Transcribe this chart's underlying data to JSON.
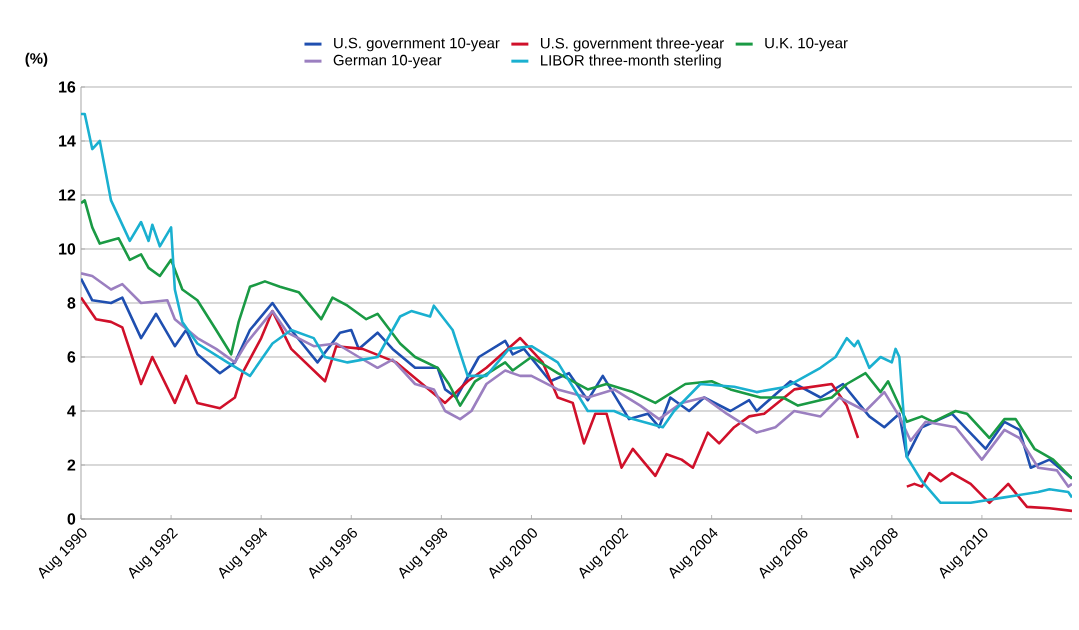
{
  "chart_data": {
    "type": "line",
    "ylabel": "(%)",
    "xlim": [
      "1990-08",
      "2012-08"
    ],
    "ylim": [
      0,
      16
    ],
    "yticks": [
      0,
      2,
      4,
      6,
      8,
      10,
      12,
      14,
      16
    ],
    "xticks": [
      {
        "value": "1990-08",
        "label": "Aug 1990"
      },
      {
        "value": "1992-08",
        "label": "Aug 1992"
      },
      {
        "value": "1994-08",
        "label": "Aug 1994"
      },
      {
        "value": "1996-08",
        "label": "Aug 1996"
      },
      {
        "value": "1998-08",
        "label": "Aug 1998"
      },
      {
        "value": "2000-08",
        "label": "Aug 2000"
      },
      {
        "value": "2002-08",
        "label": "Aug 2002"
      },
      {
        "value": "2004-08",
        "label": "Aug 2004"
      },
      {
        "value": "2006-08",
        "label": "Aug 2006"
      },
      {
        "value": "2008-08",
        "label": "Aug 2008"
      },
      {
        "value": "2010-08",
        "label": "Aug 2010"
      }
    ],
    "grid": "y",
    "legend": "top",
    "marker": "none",
    "line_style": "solid",
    "series": [
      {
        "name": "U.S. government  10-year",
        "color": "#1f4fb0",
        "x": [
          "1990-08",
          "1990-11",
          "1991-04",
          "1991-07",
          "1991-12",
          "1992-04",
          "1992-09",
          "1992-12",
          "1993-03",
          "1993-09",
          "1994-01",
          "1994-05",
          "1994-11",
          "1995-04",
          "1995-11",
          "1996-05",
          "1996-08",
          "1996-10",
          "1997-03",
          "1997-07",
          "1998-01",
          "1998-07",
          "1998-09",
          "1998-12",
          "1999-06",
          "2000-01",
          "2000-03",
          "2000-06",
          "2001-01",
          "2001-06",
          "2001-11",
          "2002-03",
          "2002-10",
          "2003-03",
          "2003-06",
          "2003-09",
          "2004-02",
          "2004-06",
          "2005-01",
          "2005-06",
          "2005-08",
          "2006-05",
          "2007-01",
          "2007-07",
          "2008-02",
          "2008-06",
          "2008-10",
          "2008-12",
          "2009-04",
          "2009-12",
          "2010-09",
          "2011-02",
          "2011-06",
          "2011-09",
          "2012-02",
          "2012-08"
        ],
        "values": [
          8.9,
          8.1,
          8.0,
          8.2,
          6.7,
          7.6,
          6.4,
          7.0,
          6.1,
          5.4,
          5.8,
          7.0,
          8.0,
          7.0,
          5.8,
          6.9,
          7.0,
          6.3,
          6.9,
          6.3,
          5.6,
          5.6,
          4.8,
          4.5,
          6.0,
          6.6,
          6.1,
          6.3,
          5.1,
          5.4,
          4.4,
          5.3,
          3.7,
          3.9,
          3.4,
          4.5,
          4.0,
          4.5,
          4.0,
          4.4,
          4.0,
          5.1,
          4.5,
          5.0,
          3.8,
          3.4,
          3.9,
          2.3,
          3.4,
          3.9,
          2.6,
          3.6,
          3.3,
          1.9,
          2.2,
          1.5
        ]
      },
      {
        "name": "U.S. government  three-year",
        "color": "#d0102a",
        "x": [
          "1990-08",
          "1990-12",
          "1991-04",
          "1991-07",
          "1991-12",
          "1992-03",
          "1992-09",
          "1992-12",
          "1993-03",
          "1993-09",
          "1994-01",
          "1994-03",
          "1994-08",
          "1994-11",
          "1995-04",
          "1996-01",
          "1996-04",
          "1996-11",
          "1997-08",
          "1998-09",
          "1999-03",
          "1999-08",
          "2000-05",
          "2000-11",
          "2001-03",
          "2001-07",
          "2001-10",
          "2002-01",
          "2002-04",
          "2002-08",
          "2002-11",
          "2003-05",
          "2003-08",
          "2003-12",
          "2004-03",
          "2004-07",
          "2004-10",
          "2005-02",
          "2005-06",
          "2005-10",
          "2006-06",
          "2007-04",
          "2007-08",
          "2007-11",
          "2008-05",
          "2008-12",
          "2009-02",
          "2009-04",
          "2009-06",
          "2009-09",
          "2009-12",
          "2010-05",
          "2010-10",
          "2011-03",
          "2011-08",
          "2012-02",
          "2012-08"
        ],
        "values": [
          8.2,
          7.4,
          7.3,
          7.1,
          5.0,
          6.0,
          4.3,
          5.3,
          4.3,
          4.1,
          4.5,
          5.4,
          6.7,
          7.7,
          6.3,
          5.1,
          6.4,
          6.3,
          5.8,
          4.3,
          5.1,
          5.6,
          6.7,
          5.8,
          4.5,
          4.3,
          2.8,
          3.9,
          3.9,
          1.9,
          2.6,
          1.6,
          2.4,
          2.2,
          1.9,
          3.2,
          2.8,
          3.4,
          3.8,
          3.9,
          4.8,
          5.0,
          4.2,
          3.0,
          null,
          1.2,
          1.3,
          1.2,
          1.7,
          1.4,
          1.7,
          1.3,
          0.6,
          1.3,
          0.45,
          0.4,
          0.3
        ]
      },
      {
        "name": "U.K. 10-year",
        "color": "#1a9a44",
        "x": [
          "1990-08",
          "1990-09",
          "1990-11",
          "1991-01",
          "1991-06",
          "1991-09",
          "1991-12",
          "1992-02",
          "1992-05",
          "1992-08",
          "1992-11",
          "1993-03",
          "1993-08",
          "1993-12",
          "1994-02",
          "1994-05",
          "1994-09",
          "1995-01",
          "1995-06",
          "1995-12",
          "1996-03",
          "1996-07",
          "1996-12",
          "1997-03",
          "1997-09",
          "1998-01",
          "1998-07",
          "1998-10",
          "1999-01",
          "1999-05",
          "2000-01",
          "2000-03",
          "2000-08",
          "2001-03",
          "2001-11",
          "2002-04",
          "2002-11",
          "2003-05",
          "2004-01",
          "2004-08",
          "2005-01",
          "2005-09",
          "2006-03",
          "2006-07",
          "2007-04",
          "2007-08",
          "2008-01",
          "2008-05",
          "2008-07",
          "2008-09",
          "2008-12",
          "2009-04",
          "2009-07",
          "2010-01",
          "2010-04",
          "2010-10",
          "2011-02",
          "2011-05",
          "2011-10",
          "2012-03",
          "2012-08"
        ],
        "values": [
          11.7,
          11.8,
          10.8,
          10.2,
          10.4,
          9.6,
          9.8,
          9.3,
          9.0,
          9.6,
          8.5,
          8.1,
          7.0,
          6.1,
          7.3,
          8.6,
          8.8,
          8.6,
          8.4,
          7.4,
          8.2,
          7.9,
          7.4,
          7.6,
          6.5,
          6.0,
          5.6,
          5.0,
          4.2,
          5.1,
          5.8,
          5.5,
          6.0,
          5.4,
          4.8,
          5.0,
          4.7,
          4.3,
          5.0,
          5.1,
          4.8,
          4.5,
          4.5,
          4.2,
          4.5,
          5.0,
          5.4,
          4.7,
          5.1,
          4.5,
          3.6,
          3.8,
          3.6,
          4.0,
          3.9,
          3.0,
          3.7,
          3.7,
          2.6,
          2.2,
          1.5
        ]
      },
      {
        "name": "German 10-year",
        "color": "#9b7fc0",
        "x": [
          "1990-08",
          "1990-11",
          "1991-04",
          "1991-07",
          "1991-12",
          "1992-07",
          "1992-09",
          "1993-03",
          "1993-08",
          "1994-01",
          "1994-04",
          "1994-11",
          "1995-03",
          "1995-10",
          "1996-04",
          "1996-10",
          "1997-03",
          "1997-07",
          "1998-01",
          "1998-06",
          "1998-09",
          "1999-01",
          "1999-04",
          "1999-08",
          "2000-01",
          "2000-05",
          "2000-08",
          "2001-03",
          "2001-11",
          "2002-06",
          "2003-01",
          "2003-06",
          "2003-12",
          "2004-06",
          "2004-12",
          "2005-08",
          "2006-01",
          "2006-06",
          "2007-01",
          "2007-06",
          "2008-01",
          "2008-06",
          "2008-10",
          "2009-01",
          "2009-05",
          "2010-01",
          "2010-08",
          "2011-02",
          "2011-06",
          "2011-11",
          "2012-04",
          "2012-07",
          "2012-08"
        ],
        "values": [
          9.1,
          9.0,
          8.5,
          8.7,
          8.0,
          8.1,
          7.4,
          6.7,
          6.3,
          5.8,
          6.5,
          7.7,
          6.9,
          6.4,
          6.5,
          6.0,
          5.6,
          5.9,
          5.0,
          4.8,
          4.0,
          3.7,
          4.0,
          5.0,
          5.5,
          5.3,
          5.3,
          4.8,
          4.5,
          4.8,
          4.2,
          3.7,
          4.3,
          4.5,
          3.9,
          3.2,
          3.4,
          4.0,
          3.8,
          4.5,
          4.0,
          4.7,
          3.8,
          2.9,
          3.6,
          3.4,
          2.2,
          3.3,
          3.0,
          1.9,
          1.8,
          1.2,
          1.3
        ]
      },
      {
        "name": "LIBOR three-month sterling",
        "color": "#1ab0d0",
        "x": [
          "1990-08",
          "1990-09",
          "1990-11",
          "1991-01",
          "1991-04",
          "1991-09",
          "1991-12",
          "1992-02",
          "1992-03",
          "1992-05",
          "1992-08",
          "1992-09",
          "1992-11",
          "1993-03",
          "1993-11",
          "1994-05",
          "1994-11",
          "1995-04",
          "1995-10",
          "1996-01",
          "1996-07",
          "1997-03",
          "1997-09",
          "1997-12",
          "1998-05",
          "1998-06",
          "1998-11",
          "1999-03",
          "1999-08",
          "2000-02",
          "2000-08",
          "2001-03",
          "2001-11",
          "2002-06",
          "2002-11",
          "2003-07",
          "2003-10",
          "2004-05",
          "2005-02",
          "2005-08",
          "2006-04",
          "2007-01",
          "2007-05",
          "2007-08",
          "2007-10",
          "2007-11",
          "2008-02",
          "2008-05",
          "2008-08",
          "2008-09",
          "2008-10",
          "2008-12",
          "2009-04",
          "2009-09",
          "2010-05",
          "2011-02",
          "2011-11",
          "2012-02",
          "2012-07",
          "2012-08"
        ],
        "values": [
          15.0,
          15.0,
          13.7,
          14.0,
          11.8,
          10.3,
          11.0,
          10.3,
          10.9,
          10.1,
          10.8,
          8.5,
          7.3,
          6.5,
          5.8,
          5.3,
          6.5,
          7.0,
          6.7,
          6.0,
          5.8,
          6.0,
          7.5,
          7.7,
          7.5,
          7.9,
          7.0,
          5.3,
          5.3,
          6.3,
          6.4,
          5.8,
          4.0,
          4.0,
          3.7,
          3.4,
          4.0,
          5.0,
          4.9,
          4.7,
          4.9,
          5.6,
          6.0,
          6.7,
          6.4,
          6.6,
          5.6,
          6.0,
          5.8,
          6.3,
          6.0,
          2.3,
          1.4,
          0.6,
          0.6,
          0.8,
          1.0,
          1.1,
          1.0,
          0.8
        ]
      }
    ]
  }
}
